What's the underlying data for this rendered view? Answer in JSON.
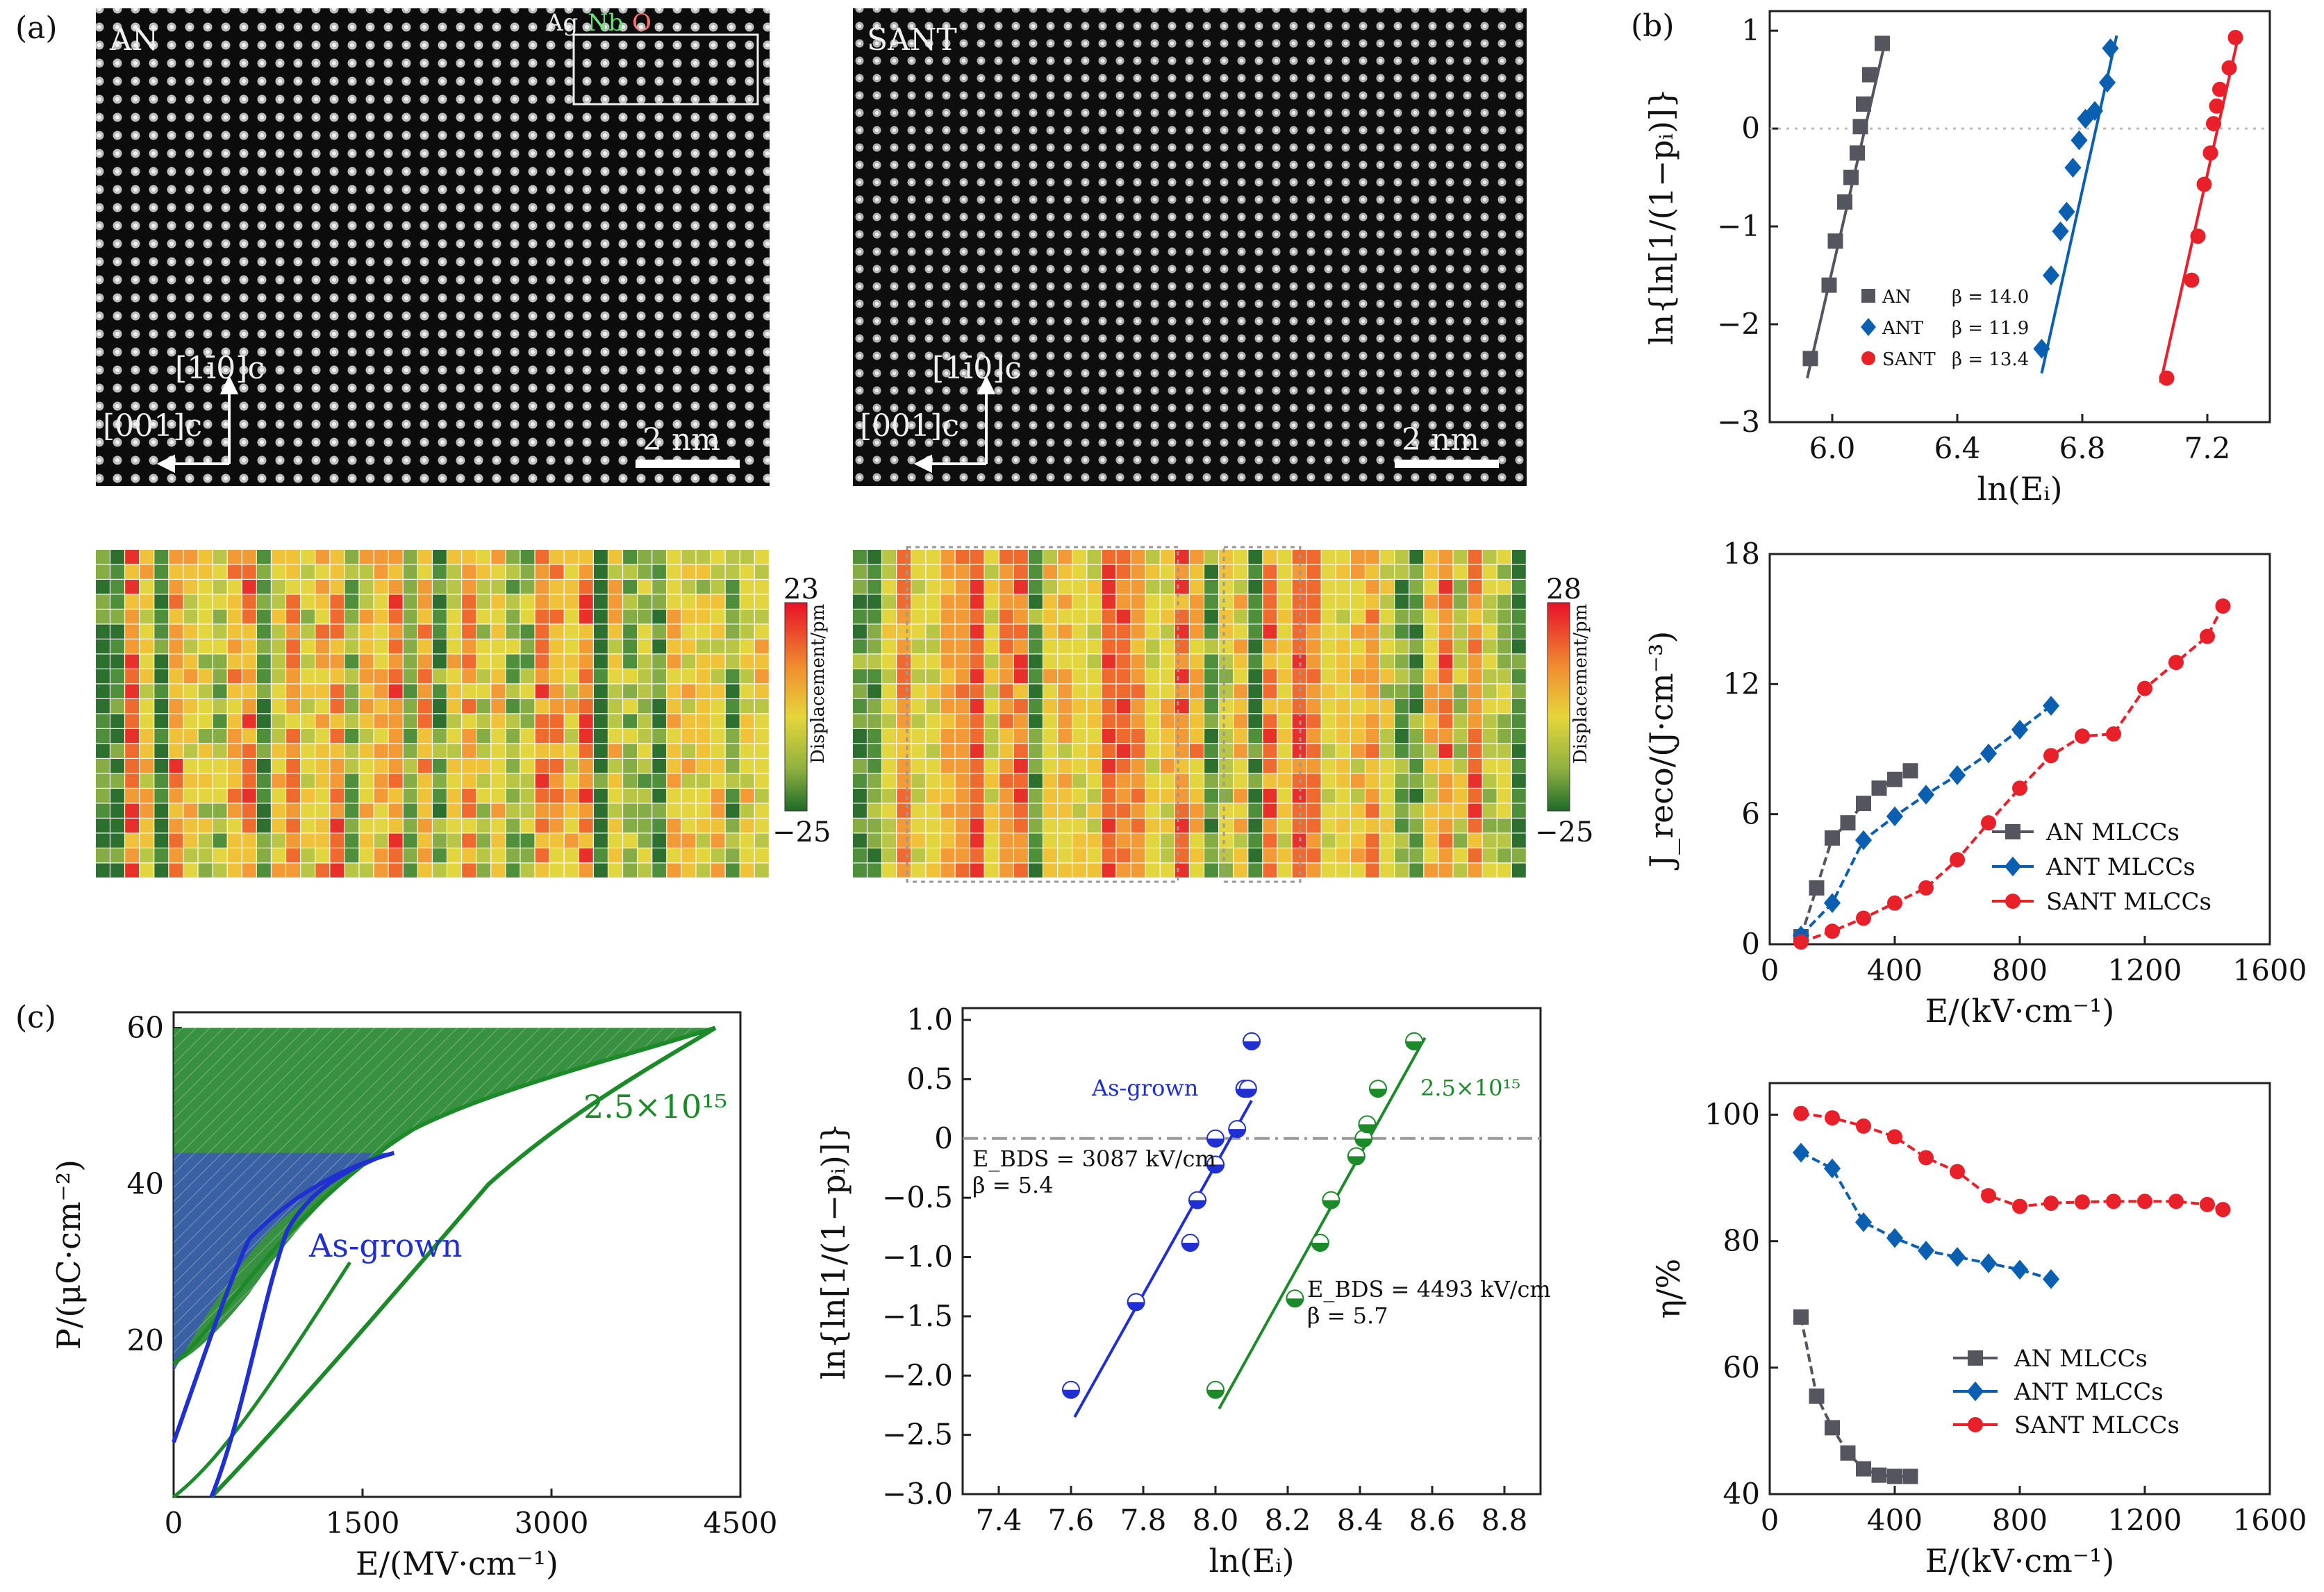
{
  "panel_labels": {
    "a": "(a)",
    "b": "(b)",
    "c": "(c)"
  },
  "images": [
    {
      "label": "AN",
      "x_dir": "[001]c",
      "y_dir": "[1ī0]c",
      "scalebar": "2 nm",
      "inset_labels": [
        "Ag",
        "Nb",
        "O"
      ]
    },
    {
      "label": "SANT",
      "x_dir": "[001]c",
      "y_dir": "[1ī0]c",
      "scalebar": "2 nm"
    }
  ],
  "displacement_maps": [
    {
      "colorbar_max": "23",
      "colorbar_min": "−25",
      "colorbar_label": "Displacement/pm"
    },
    {
      "colorbar_max": "28",
      "colorbar_min": "−25",
      "colorbar_label": "Displacement/pm"
    }
  ],
  "colors": {
    "AN": "#555560",
    "ANT": "#0b5fb0",
    "SANT": "#e8202a",
    "asgrown": "#1f2fd0",
    "irr": "#1d8a2a"
  },
  "chart_data": [
    {
      "id": "weibull_b",
      "type": "scatter",
      "xlabel": "ln(Eᵢ)",
      "ylabel": "ln{ln[1/(1−pᵢ)]}",
      "xlim": [
        5.8,
        7.4
      ],
      "ylim": [
        -3,
        1.2
      ],
      "xticks": [
        "6.0",
        "6.4",
        "6.8",
        "7.2"
      ],
      "yticks": [
        "1",
        "0",
        "−1",
        "−2",
        "−3"
      ],
      "series": [
        {
          "name": "AN",
          "beta": "β = 14.0",
          "marker": "square",
          "x": [
            5.93,
            5.99,
            6.01,
            6.04,
            6.06,
            6.08,
            6.09,
            6.1,
            6.12,
            6.16
          ],
          "y": [
            -2.35,
            -1.6,
            -1.15,
            -0.75,
            -0.5,
            -0.25,
            0.02,
            0.25,
            0.55,
            0.87
          ],
          "fit": [
            [
              5.92,
              -2.55
            ],
            [
              6.17,
              0.9
            ]
          ]
        },
        {
          "name": "ANT",
          "beta": "β = 11.9",
          "marker": "diamond",
          "x": [
            6.67,
            6.7,
            6.73,
            6.75,
            6.77,
            6.79,
            6.81,
            6.84,
            6.88,
            6.89
          ],
          "y": [
            -2.25,
            -1.5,
            -1.05,
            -0.85,
            -0.4,
            -0.12,
            0.1,
            0.18,
            0.47,
            0.82
          ],
          "fit": [
            [
              6.67,
              -2.5
            ],
            [
              6.91,
              0.95
            ]
          ]
        },
        {
          "name": "SANT",
          "beta": "β = 13.4",
          "marker": "circle",
          "x": [
            7.07,
            7.15,
            7.17,
            7.19,
            7.21,
            7.22,
            7.23,
            7.24,
            7.27,
            7.29
          ],
          "y": [
            -2.55,
            -1.55,
            -1.1,
            -0.57,
            -0.25,
            0.05,
            0.23,
            0.4,
            0.62,
            0.93
          ],
          "fit": [
            [
              7.05,
              -2.6
            ],
            [
              7.3,
              0.95
            ]
          ]
        }
      ]
    },
    {
      "id": "jreco_b",
      "type": "line",
      "xlabel": "E/(kV·cm⁻¹)",
      "ylabel": "J_reco/(J·cm⁻³)",
      "xlim": [
        0,
        1600
      ],
      "ylim": [
        0,
        18
      ],
      "xticks": [
        "0",
        "400",
        "800",
        "1200",
        "1600"
      ],
      "yticks": [
        "0",
        "6",
        "12",
        "18"
      ],
      "series": [
        {
          "name": "AN MLCCs",
          "marker": "square",
          "x": [
            100,
            150,
            200,
            250,
            300,
            350,
            400,
            450
          ],
          "y": [
            0.35,
            2.6,
            4.9,
            5.6,
            6.5,
            7.2,
            7.6,
            8.0
          ]
        },
        {
          "name": "ANT MLCCs",
          "marker": "diamond",
          "x": [
            100,
            200,
            300,
            400,
            500,
            600,
            700,
            800,
            900
          ],
          "y": [
            0.4,
            1.9,
            4.8,
            5.9,
            6.9,
            7.8,
            8.8,
            9.9,
            11.0
          ]
        },
        {
          "name": "SANT MLCCs",
          "marker": "circle",
          "x": [
            100,
            200,
            300,
            400,
            500,
            600,
            700,
            800,
            900,
            1000,
            1100,
            1200,
            1300,
            1400,
            1450
          ],
          "y": [
            0.1,
            0.6,
            1.2,
            1.9,
            2.6,
            3.9,
            5.6,
            7.2,
            8.7,
            9.6,
            9.7,
            11.8,
            13.0,
            14.2,
            15.6
          ]
        }
      ]
    },
    {
      "id": "eta_b",
      "type": "line",
      "xlabel": "E/(kV·cm⁻¹)",
      "ylabel": "η/%",
      "xlim": [
        0,
        1600
      ],
      "ylim": [
        40,
        105
      ],
      "xticks": [
        "0",
        "400",
        "800",
        "1200",
        "1600"
      ],
      "yticks": [
        "40",
        "60",
        "80",
        "100"
      ],
      "series": [
        {
          "name": "AN MLCCs",
          "marker": "square",
          "x": [
            100,
            150,
            200,
            250,
            300,
            350,
            400,
            450
          ],
          "y": [
            68.0,
            55.5,
            50.5,
            46.5,
            44.0,
            43.0,
            42.8,
            42.8
          ]
        },
        {
          "name": "ANT MLCCs",
          "marker": "diamond",
          "x": [
            100,
            200,
            300,
            400,
            500,
            600,
            700,
            800,
            900
          ],
          "y": [
            94.0,
            91.5,
            83.0,
            80.5,
            78.5,
            77.5,
            76.5,
            75.5,
            74.0
          ]
        },
        {
          "name": "SANT MLCCs",
          "marker": "circle",
          "x": [
            100,
            200,
            300,
            400,
            500,
            600,
            700,
            800,
            900,
            1000,
            1100,
            1200,
            1300,
            1400,
            1450
          ],
          "y": [
            100.2,
            99.5,
            98.2,
            96.5,
            93.2,
            91.0,
            87.2,
            85.5,
            86.0,
            86.2,
            86.3,
            86.3,
            86.3,
            85.8,
            85.0
          ]
        }
      ]
    },
    {
      "id": "pe_c",
      "type": "line",
      "xlabel": "E/(MV·cm⁻¹)",
      "ylabel": "P/(μC·cm⁻²)",
      "xlim": [
        0,
        4500
      ],
      "ylim": [
        0,
        62
      ],
      "xticks": [
        "0",
        "1500",
        "3000",
        "4500"
      ],
      "yticks": [
        "20",
        "40",
        "60"
      ],
      "series": [
        {
          "name": "As-grown",
          "annotation": "As-grown"
        },
        {
          "name": "2.5×10¹⁵",
          "annotation": "2.5×10¹⁵"
        }
      ]
    },
    {
      "id": "weibull_c",
      "type": "scatter",
      "xlabel": "ln(Eᵢ)",
      "ylabel": "ln{ln[1/(1−pᵢ)]}",
      "xlim": [
        7.3,
        8.9
      ],
      "ylim": [
        -3.0,
        1.1
      ],
      "xticks": [
        "7.4",
        "7.6",
        "7.8",
        "8.0",
        "8.2",
        "8.4",
        "8.6",
        "8.8"
      ],
      "yticks": [
        "1.0",
        "0.5",
        "0",
        "−0.5",
        "−1.0",
        "−1.5",
        "−2.0",
        "−2.5",
        "−3.0"
      ],
      "series": [
        {
          "name": "As-grown",
          "ebds": "E_BDS = 3087 kV/cm",
          "beta": "β = 5.4",
          "x": [
            7.6,
            7.78,
            7.93,
            7.95,
            8.0,
            8.0,
            8.06,
            8.08,
            8.09,
            8.1
          ],
          "y": [
            -2.12,
            -1.38,
            -0.88,
            -0.52,
            -0.22,
            0.0,
            0.08,
            0.42,
            0.42,
            0.82
          ],
          "fit": [
            [
              7.61,
              -2.35
            ],
            [
              8.1,
              0.32
            ]
          ]
        },
        {
          "name": "2.5×10¹⁵",
          "ebds": "E_BDS = 4493 kV/cm",
          "beta": "β = 5.7",
          "x": [
            8.0,
            8.22,
            8.29,
            8.32,
            8.39,
            8.41,
            8.42,
            8.45,
            8.55
          ],
          "y": [
            -2.12,
            -1.35,
            -0.88,
            -0.52,
            -0.15,
            0.0,
            0.12,
            0.42,
            0.82
          ],
          "fit": [
            [
              8.01,
              -2.28
            ],
            [
              8.58,
              0.85
            ]
          ]
        }
      ]
    }
  ]
}
